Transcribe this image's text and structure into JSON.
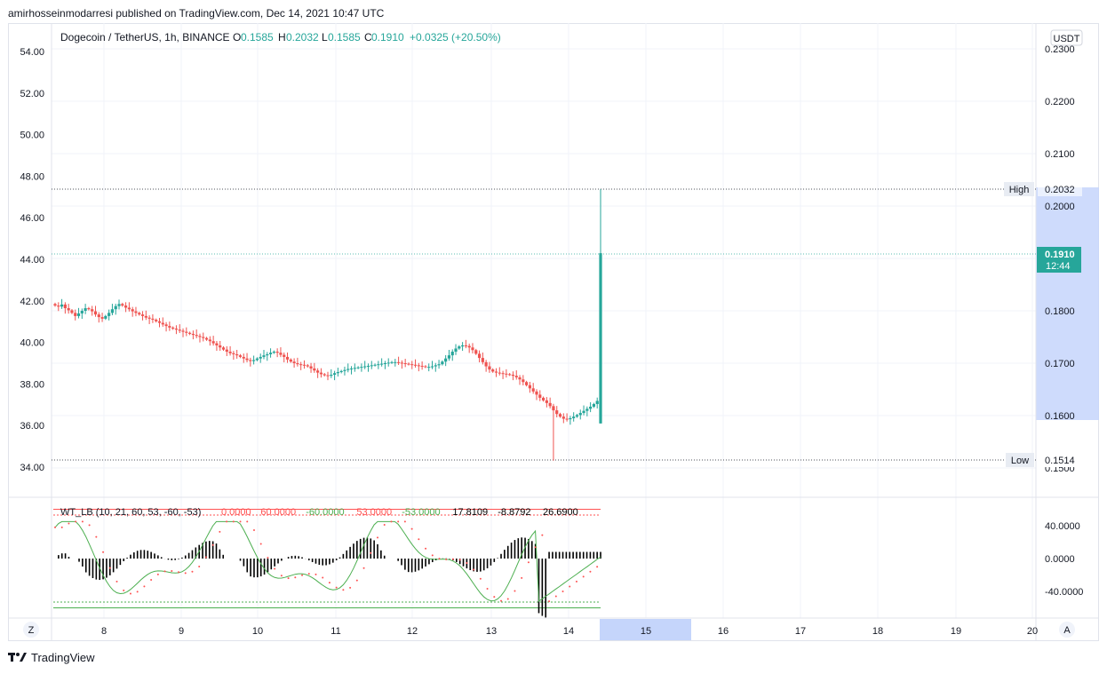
{
  "header": {
    "published": "amirhosseinmodarresi published on TradingView.com, Dec 14, 2021 10:47 UTC"
  },
  "footer": {
    "brand": "TradingView",
    "logo": "tv-logo-icon"
  },
  "legend": {
    "symbol": "Dogecoin / TetherUS, 1h, BINANCE",
    "o_label": "O",
    "o_value": "0.1585",
    "h_label": "H",
    "h_value": "0.2032",
    "l_label": "L",
    "l_value": "0.1585",
    "c_label": "C",
    "c_value": "0.1910",
    "change": "+0.0325 (+20.50%)"
  },
  "currency_button": "USDT",
  "price_scale_labels": [
    "0.2300",
    "0.2200",
    "0.2100",
    "0.2000",
    "0.1800",
    "0.1700",
    "0.1600",
    "0.1500"
  ],
  "left_scale_labels": [
    "54.00",
    "52.00",
    "50.00",
    "48.00",
    "46.00",
    "44.00",
    "42.00",
    "40.00",
    "38.00",
    "36.00",
    "34.00"
  ],
  "markers": {
    "high_label": "High",
    "high_value": "0.2032",
    "low_label": "Low",
    "low_value": "0.1514",
    "last_price": "0.1910",
    "countdown": "12:44"
  },
  "indicator": {
    "label": "WT_LB (10, 21, 60, 53, -60, -53)",
    "values": [
      "0.0000",
      "60.0000",
      "-60.0000",
      "53.0000",
      "-53.0000",
      "17.8109",
      "-8.8792",
      "26.6900"
    ],
    "value_colors": [
      "#ff5252",
      "#ff5252",
      "#4caf50",
      "#ff5252",
      "#4caf50",
      "#000000",
      "#000000",
      "#000000"
    ],
    "scale_labels": [
      "40.0000",
      "0.0000",
      "-40.0000"
    ]
  },
  "time_axis": [
    "8",
    "9",
    "10",
    "11",
    "12",
    "13",
    "14",
    "15",
    "16",
    "17",
    "18",
    "19",
    "20"
  ],
  "axis_buttons": {
    "left": "Z",
    "right": "A"
  },
  "colors": {
    "up": "#26a69a",
    "down": "#ef5350",
    "range_highlight": "#c5d5fb",
    "last_price_bg": "#26a69a"
  },
  "chart_data": {
    "type": "candlestick",
    "title": "Dogecoin / TetherUS, 1h, BINANCE",
    "ylabel": "USDT",
    "ylim": [
      0.1485,
      0.2325
    ],
    "x_ticks": [
      "8",
      "9",
      "10",
      "11",
      "12",
      "13",
      "14",
      "15",
      "16",
      "17",
      "18",
      "19",
      "20"
    ],
    "high": 0.2032,
    "low": 0.1514,
    "last": 0.191,
    "series": [
      {
        "name": "Close",
        "values": [
          0.181,
          0.1808,
          0.1812,
          0.1805,
          0.1801,
          0.1796,
          0.179,
          0.1795,
          0.18,
          0.1805,
          0.1803,
          0.1799,
          0.1793,
          0.1788,
          0.1785,
          0.179,
          0.1796,
          0.1803,
          0.1809,
          0.1813,
          0.181,
          0.1806,
          0.1803,
          0.1799,
          0.1796,
          0.1793,
          0.179,
          0.1787,
          0.1785,
          0.1783,
          0.178,
          0.1777,
          0.1774,
          0.1771,
          0.1768,
          0.1766,
          0.1764,
          0.1762,
          0.176,
          0.1758,
          0.1756,
          0.1754,
          0.1752,
          0.175,
          0.1748,
          0.1745,
          0.1742,
          0.1738,
          0.1734,
          0.173,
          0.1726,
          0.1722,
          0.1719,
          0.1717,
          0.1715,
          0.1712,
          0.1709,
          0.1706,
          0.1704,
          0.1706,
          0.1709,
          0.1712,
          0.1715,
          0.1717,
          0.172,
          0.1722,
          0.172,
          0.1716,
          0.1712,
          0.1707,
          0.1703,
          0.17,
          0.1698,
          0.1697,
          0.1696,
          0.1694,
          0.169,
          0.1686,
          0.1682,
          0.1679,
          0.1677,
          0.1676,
          0.1678,
          0.1681,
          0.1683,
          0.1685,
          0.1687,
          0.1689,
          0.169,
          0.1691,
          0.1692,
          0.1693,
          0.1694,
          0.1695,
          0.1696,
          0.1697,
          0.1698,
          0.1699,
          0.17,
          0.1701,
          0.1702,
          0.1702,
          0.1701,
          0.17,
          0.1699,
          0.1698,
          0.1697,
          0.1696,
          0.1695,
          0.1694,
          0.1693,
          0.1693,
          0.1694,
          0.1696,
          0.1698,
          0.1703,
          0.1709,
          0.1715,
          0.1722,
          0.1728,
          0.1732,
          0.1734,
          0.1733,
          0.173,
          0.1725,
          0.1718,
          0.171,
          0.1702,
          0.1694,
          0.1688,
          0.1684,
          0.1682,
          0.1681,
          0.168,
          0.1679,
          0.1678,
          0.1676,
          0.1673,
          0.1669,
          0.1664,
          0.1658,
          0.1652,
          0.1646,
          0.164,
          0.1634,
          0.1629,
          0.1624,
          0.1618,
          0.161,
          0.1603,
          0.1598,
          0.1594,
          0.1593,
          0.1595,
          0.1598,
          0.1601,
          0.1605,
          0.1609,
          0.1613,
          0.1617,
          0.1622,
          0.1628,
          0.191
        ]
      }
    ],
    "oscillator": {
      "name": "WT_LB (10, 21, 60, 53, -60, -53)",
      "levels": [
        60,
        53,
        -53,
        -60
      ],
      "ylim": [
        -70,
        70
      ],
      "ticks": [
        40,
        0,
        -40
      ]
    }
  }
}
